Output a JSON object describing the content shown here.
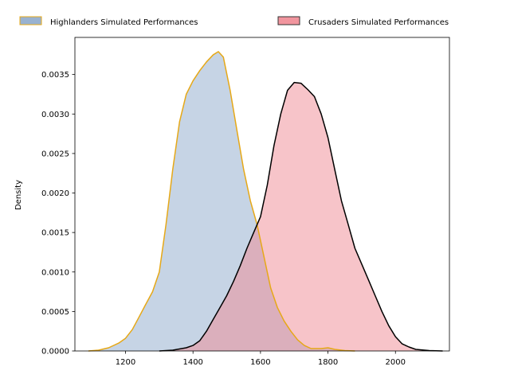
{
  "chart_data": {
    "type": "area",
    "title": "",
    "xlabel": "",
    "ylabel": "Density",
    "xlim": [
      1050,
      2160
    ],
    "ylim": [
      0,
      0.00397
    ],
    "xticks": [
      1200,
      1400,
      1600,
      1800,
      2000
    ],
    "xtick_labels": [
      "1200",
      "1400",
      "1600",
      "1800",
      "2000"
    ],
    "yticks": [
      0,
      0.0005,
      0.001,
      0.0015,
      0.002,
      0.0025,
      0.003,
      0.0035
    ],
    "ytick_labels": [
      "0.0000",
      "0.0005",
      "0.0010",
      "0.0015",
      "0.0020",
      "0.0025",
      "0.0030",
      "0.0035"
    ],
    "grid": false,
    "legend_position": "top",
    "series": [
      {
        "name": "Highlanders Simulated Performances",
        "fill": "#8eaacb",
        "fill_opacity": 0.5,
        "line": "#e6a817",
        "points": [
          [
            1090,
            0
          ],
          [
            1120,
            1e-05
          ],
          [
            1150,
            4e-05
          ],
          [
            1180,
            0.0001
          ],
          [
            1200,
            0.00016
          ],
          [
            1220,
            0.00027
          ],
          [
            1240,
            0.00043
          ],
          [
            1260,
            0.00059
          ],
          [
            1280,
            0.00075
          ],
          [
            1300,
            0.001
          ],
          [
            1320,
            0.0016
          ],
          [
            1340,
            0.0023
          ],
          [
            1360,
            0.0029
          ],
          [
            1380,
            0.00325
          ],
          [
            1400,
            0.00342
          ],
          [
            1420,
            0.00355
          ],
          [
            1440,
            0.00366
          ],
          [
            1460,
            0.00375
          ],
          [
            1475,
            0.00379
          ],
          [
            1490,
            0.00372
          ],
          [
            1510,
            0.0033
          ],
          [
            1530,
            0.0028
          ],
          [
            1550,
            0.0023
          ],
          [
            1570,
            0.0019
          ],
          [
            1590,
            0.0016
          ],
          [
            1610,
            0.0012
          ],
          [
            1630,
            0.0008
          ],
          [
            1650,
            0.00055
          ],
          [
            1670,
            0.00038
          ],
          [
            1690,
            0.00025
          ],
          [
            1710,
            0.00014
          ],
          [
            1730,
            7e-05
          ],
          [
            1750,
            3e-05
          ],
          [
            1780,
            3e-05
          ],
          [
            1800,
            4e-05
          ],
          [
            1820,
            2e-05
          ],
          [
            1850,
            5e-06
          ],
          [
            1880,
            0
          ]
        ]
      },
      {
        "name": "Crusaders Simulated Performances",
        "fill": "#f08a93",
        "fill_opacity": 0.5,
        "line": "#000000",
        "points": [
          [
            1300,
            0
          ],
          [
            1340,
            1e-05
          ],
          [
            1380,
            4e-05
          ],
          [
            1400,
            7e-05
          ],
          [
            1420,
            0.00013
          ],
          [
            1440,
            0.00025
          ],
          [
            1460,
            0.0004
          ],
          [
            1480,
            0.00055
          ],
          [
            1500,
            0.0007
          ],
          [
            1520,
            0.00088
          ],
          [
            1540,
            0.00108
          ],
          [
            1560,
            0.0013
          ],
          [
            1580,
            0.0015
          ],
          [
            1600,
            0.0017
          ],
          [
            1620,
            0.0021
          ],
          [
            1640,
            0.0026
          ],
          [
            1660,
            0.003
          ],
          [
            1680,
            0.0033
          ],
          [
            1700,
            0.0034
          ],
          [
            1720,
            0.00339
          ],
          [
            1740,
            0.00331
          ],
          [
            1760,
            0.00322
          ],
          [
            1780,
            0.003
          ],
          [
            1800,
            0.0027
          ],
          [
            1820,
            0.0023
          ],
          [
            1840,
            0.0019
          ],
          [
            1860,
            0.0016
          ],
          [
            1880,
            0.0013
          ],
          [
            1900,
            0.0011
          ],
          [
            1920,
            0.0009
          ],
          [
            1940,
            0.0007
          ],
          [
            1960,
            0.0005
          ],
          [
            1980,
            0.00032
          ],
          [
            2000,
            0.00018
          ],
          [
            2020,
            9e-05
          ],
          [
            2040,
            5e-05
          ],
          [
            2060,
            2e-05
          ],
          [
            2100,
            5e-06
          ],
          [
            2140,
            0
          ]
        ]
      }
    ]
  }
}
